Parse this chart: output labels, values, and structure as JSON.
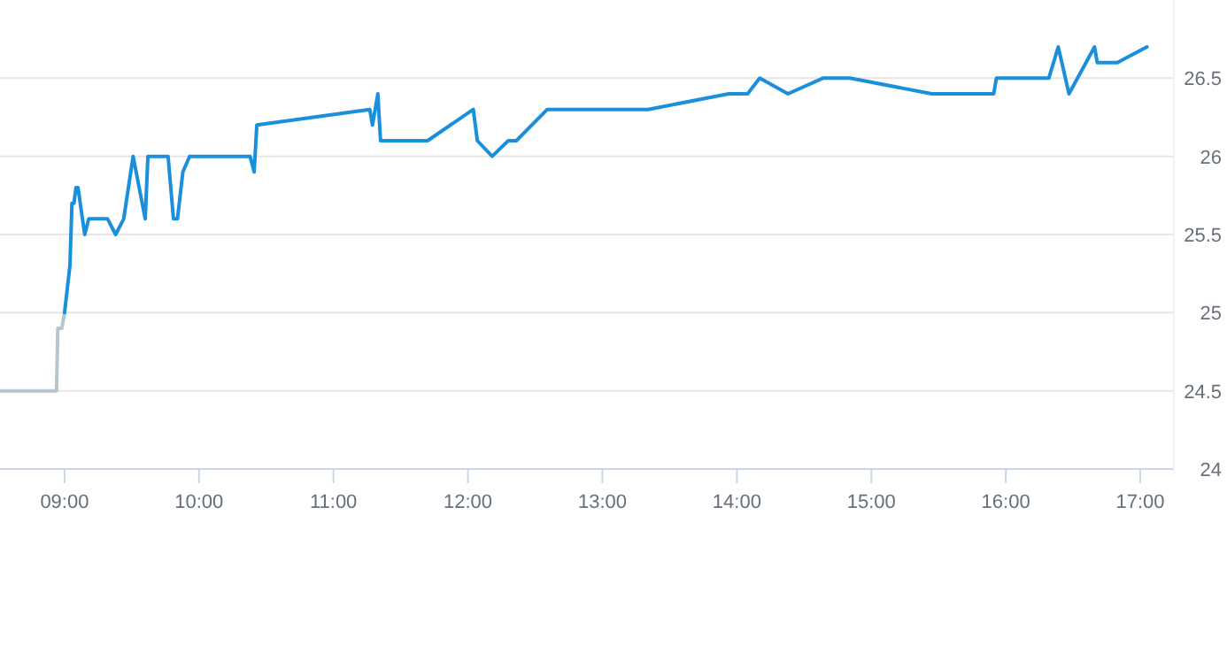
{
  "chart_data": {
    "type": "line",
    "xlim": [
      8.52,
      17.25
    ],
    "ylim": [
      24,
      27
    ],
    "xticks": [
      {
        "value": 9,
        "label": "09:00"
      },
      {
        "value": 10,
        "label": "10:00"
      },
      {
        "value": 11,
        "label": "11:00"
      },
      {
        "value": 12,
        "label": "12:00"
      },
      {
        "value": 13,
        "label": "13:00"
      },
      {
        "value": 14,
        "label": "14:00"
      },
      {
        "value": 15,
        "label": "15:00"
      },
      {
        "value": 16,
        "label": "16:00"
      },
      {
        "value": 17,
        "label": "17:00"
      }
    ],
    "yticks": [
      24,
      24.5,
      25,
      25.5,
      26,
      26.5
    ],
    "grid": "y",
    "marker": "none",
    "line_style": "solid",
    "series": [
      {
        "color": "#b4c6cf",
        "x": [
          8.52,
          8.94,
          8.95,
          8.98,
          9.0
        ],
        "values": [
          24.5,
          24.5,
          24.9,
          24.9,
          25.0
        ]
      },
      {
        "color": "#1a8fdb",
        "x": [
          9.0,
          9.04,
          9.055,
          9.07,
          9.085,
          9.1,
          9.15,
          9.18,
          9.32,
          9.38,
          9.44,
          9.51,
          9.6,
          9.62,
          9.77,
          9.81,
          9.84,
          9.88,
          9.93,
          10.38,
          10.41,
          10.43,
          11.27,
          11.29,
          11.33,
          11.35,
          11.7,
          12.04,
          12.07,
          12.18,
          12.3,
          12.36,
          12.59,
          13.34,
          13.94,
          14.08,
          14.17,
          14.38,
          14.64,
          14.84,
          15.45,
          15.91,
          15.93,
          16.32,
          16.39,
          16.47,
          16.66,
          16.68,
          16.83,
          17.05
        ],
        "values": [
          25.0,
          25.3,
          25.7,
          25.7,
          25.8,
          25.8,
          25.5,
          25.6,
          25.6,
          25.5,
          25.6,
          26.0,
          25.6,
          26.0,
          26.0,
          25.6,
          25.6,
          25.9,
          26.0,
          26.0,
          25.9,
          26.2,
          26.3,
          26.2,
          26.4,
          26.1,
          26.1,
          26.3,
          26.1,
          26.0,
          26.1,
          26.1,
          26.3,
          26.3,
          26.4,
          26.4,
          26.5,
          26.4,
          26.5,
          26.5,
          26.4,
          26.4,
          26.5,
          26.5,
          26.7,
          26.4,
          26.7,
          26.6,
          26.6,
          26.7
        ]
      }
    ]
  }
}
